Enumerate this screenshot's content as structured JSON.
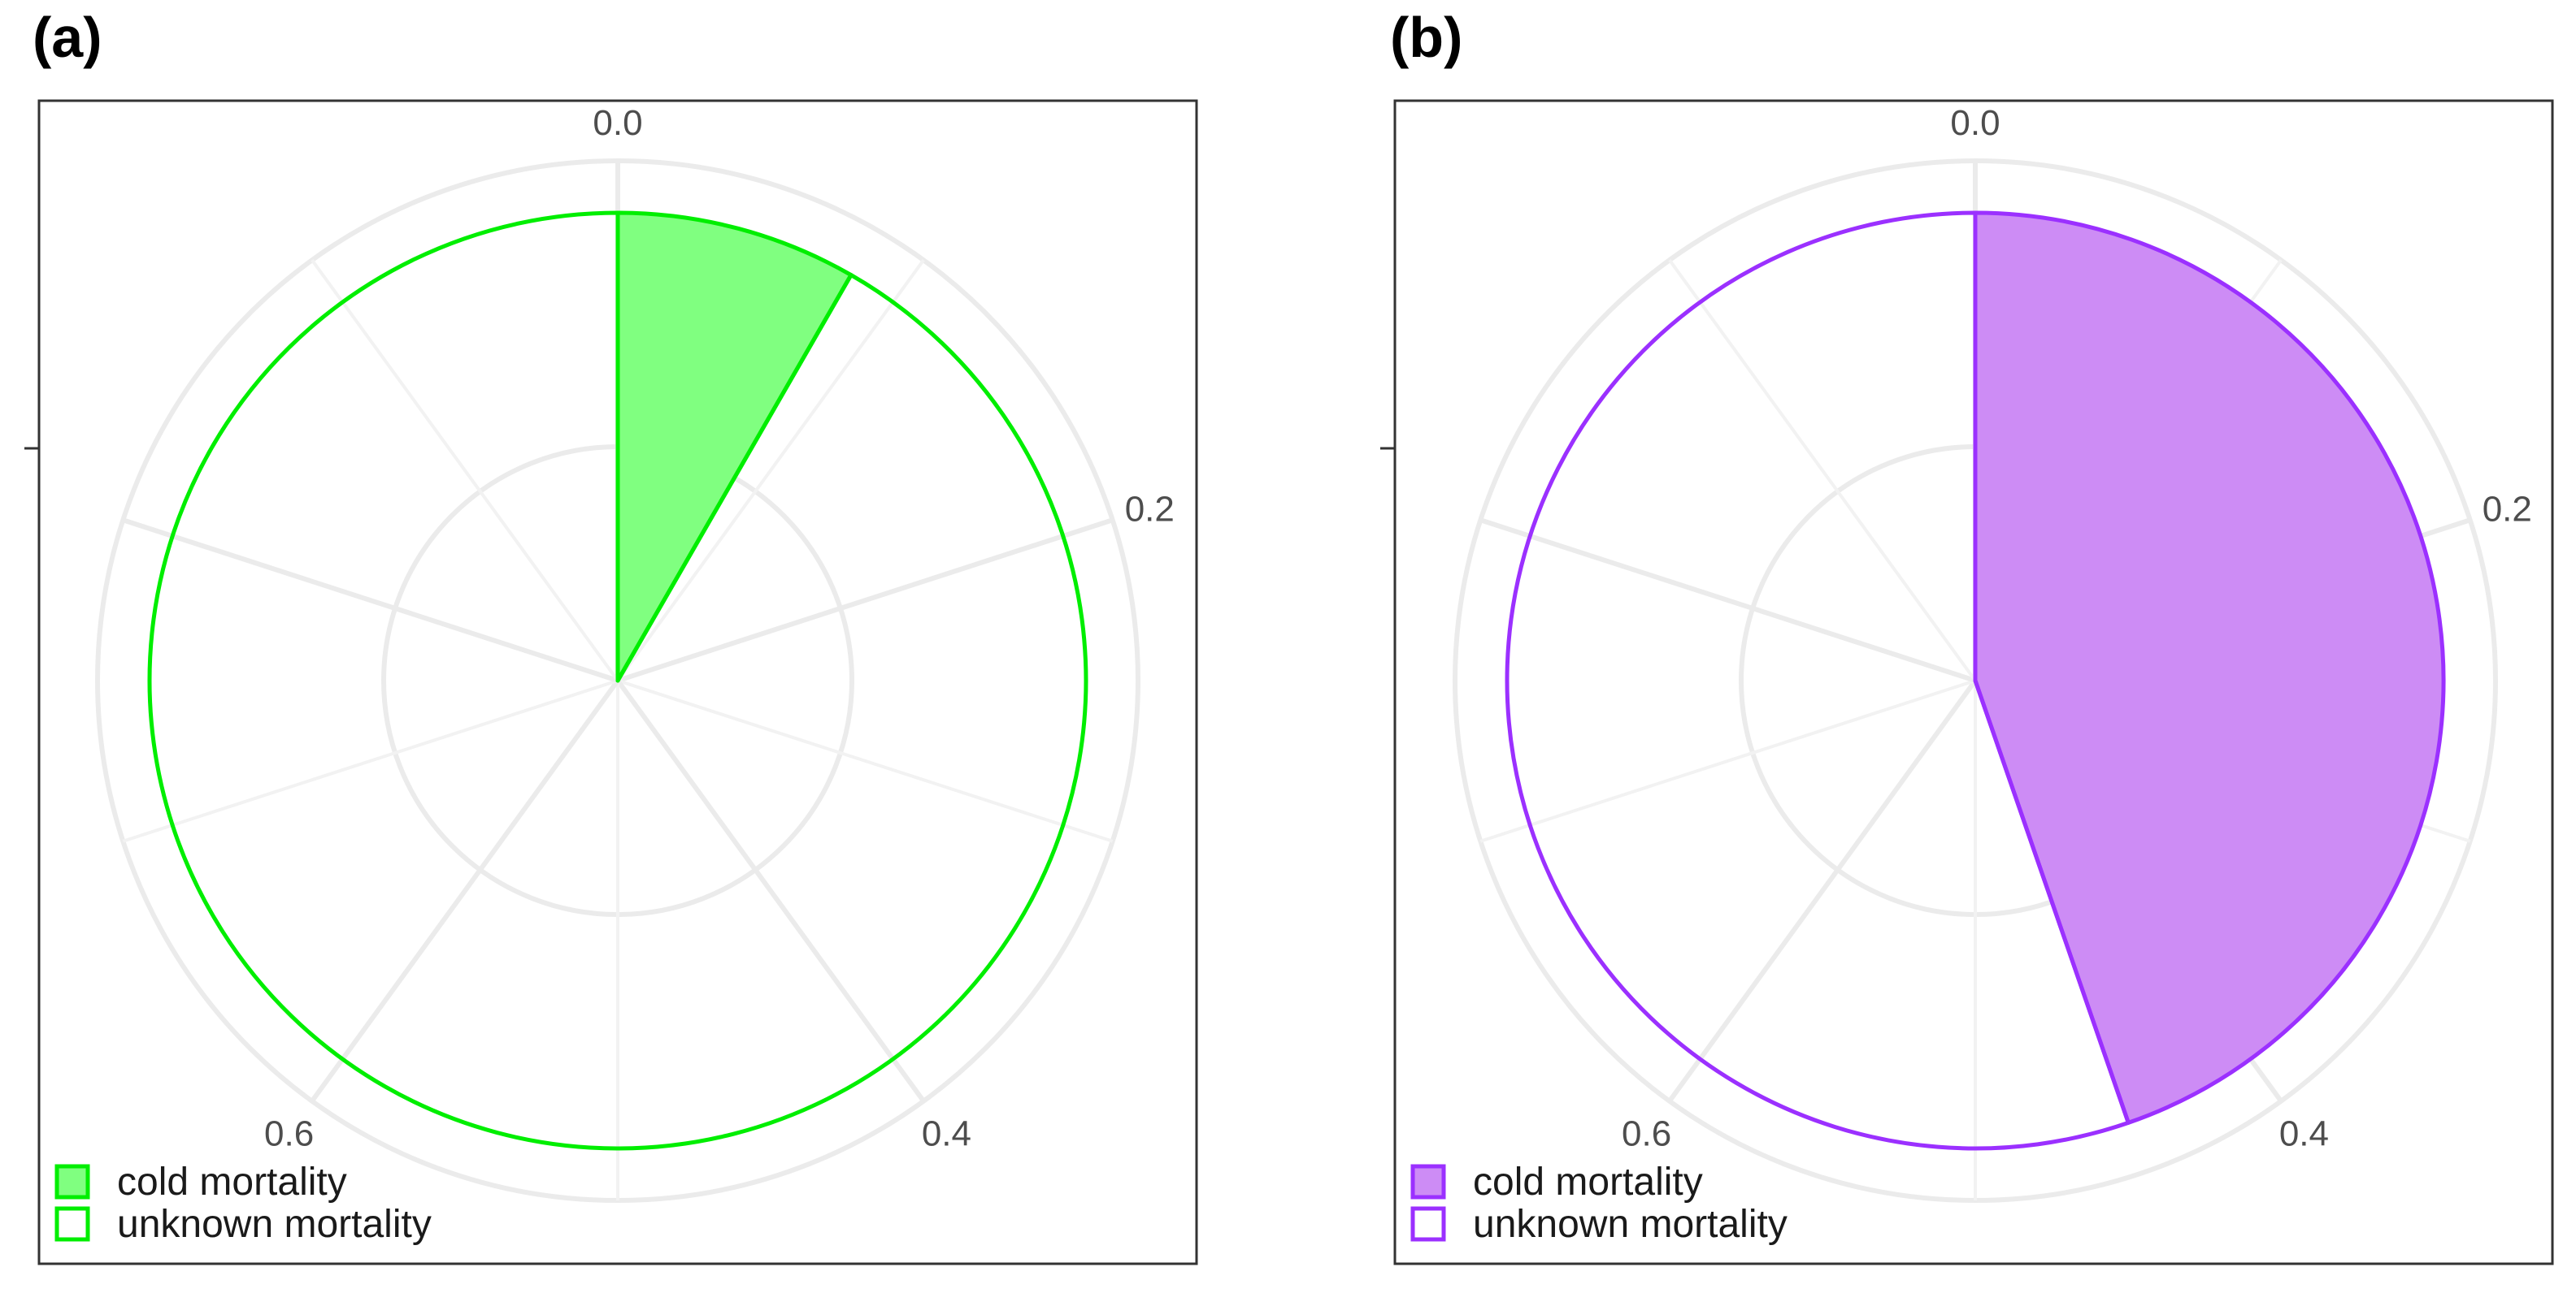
{
  "chart_data": [
    {
      "type": "pie",
      "panel_label": "(a)",
      "theta_ticks": [
        "0.0",
        "0.2",
        "0.4",
        "0.6"
      ],
      "slices": [
        {
          "label": "cold mortality",
          "value": 0.083
        },
        {
          "label": "unknown mortality",
          "value": 0.917
        }
      ],
      "colors": {
        "accent": "#00ee00",
        "fill": "#80ff80"
      },
      "legend": {
        "entries": [
          "cold mortality",
          "unknown mortality"
        ],
        "position": "bottom-left"
      }
    },
    {
      "type": "pie",
      "panel_label": "(b)",
      "theta_ticks": [
        "0.0",
        "0.2",
        "0.4",
        "0.6"
      ],
      "slices": [
        {
          "label": "cold mortality",
          "value": 0.447
        },
        {
          "label": "unknown mortality",
          "value": 0.553
        }
      ],
      "colors": {
        "accent": "#9b30ff",
        "fill": "#cd8cf5"
      },
      "legend": {
        "entries": [
          "cold mortality",
          "unknown mortality"
        ],
        "position": "bottom-left"
      }
    }
  ]
}
